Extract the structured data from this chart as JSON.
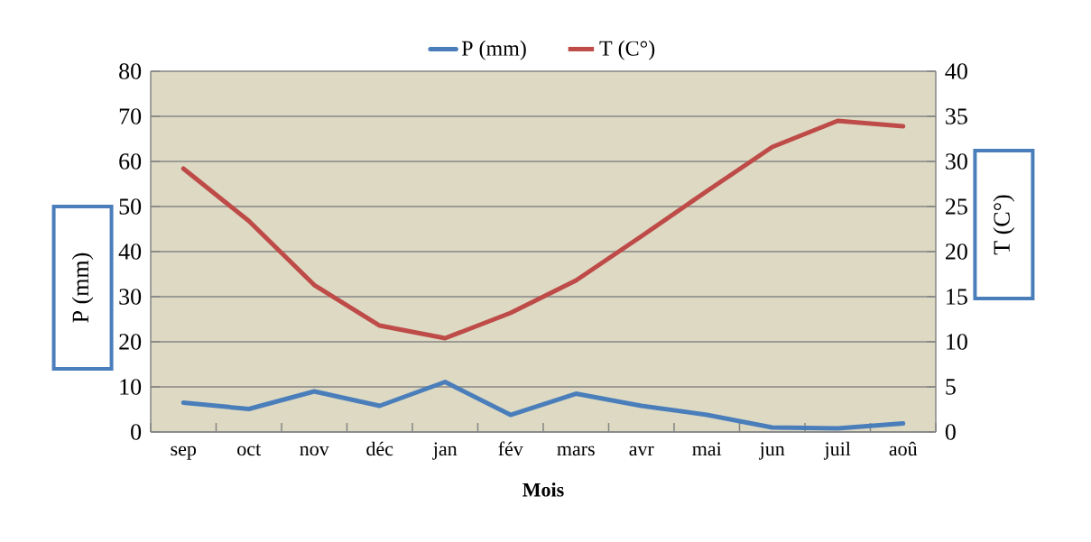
{
  "chart_data": {
    "type": "line",
    "xlabel": "Mois",
    "ylabel": "P (mm)",
    "y2label": "T (C°)",
    "categories": [
      "sep",
      "oct",
      "nov",
      "déc",
      "jan",
      "fév",
      "mars",
      "avr",
      "mai",
      "jun",
      "juil",
      "aoû"
    ],
    "series": [
      {
        "name": "P (mm)",
        "color": "#4a7ebb",
        "values": [
          6.5,
          5.1,
          9.0,
          5.8,
          11.1,
          3.8,
          8.5,
          5.8,
          3.8,
          1.0,
          0.8,
          1.9
        ]
      },
      {
        "name": "T  (C°)",
        "color": "#be4b48",
        "axis": "y2",
        "values": [
          29.2,
          23.4,
          16.3,
          11.8,
          10.4,
          13.2,
          16.8,
          21.7,
          26.7,
          31.6,
          34.5,
          33.9
        ]
      }
    ],
    "ylim": [
      0,
      80
    ],
    "yticks": [
      0,
      10,
      20,
      30,
      40,
      50,
      60,
      70,
      80
    ],
    "y2lim": [
      0,
      40
    ],
    "y2ticks": [
      0,
      5,
      10,
      15,
      20,
      25,
      30,
      35,
      40
    ],
    "grid": "y",
    "legend": "top"
  }
}
